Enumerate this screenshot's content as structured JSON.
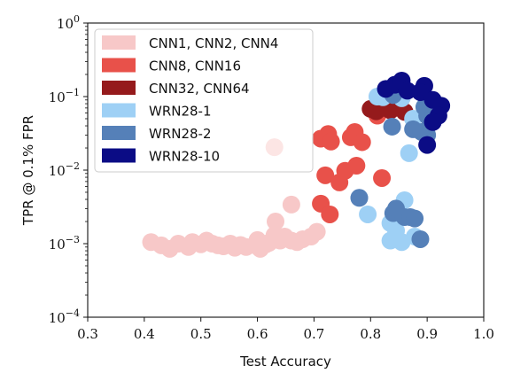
{
  "chart_data": {
    "type": "scatter",
    "title": "",
    "xlabel": "Test Accuracy",
    "ylabel": "TPR @ 0.1% FPR",
    "x_range": [
      0.3,
      1.0
    ],
    "y_range": [
      0.0001,
      1
    ],
    "y_scale": "log",
    "grid": false,
    "legend_position": "top-left",
    "x_ticks": [
      {
        "value": 0.3,
        "label": "0.3"
      },
      {
        "value": 0.4,
        "label": "0.4"
      },
      {
        "value": 0.5,
        "label": "0.5"
      },
      {
        "value": 0.6,
        "label": "0.6"
      },
      {
        "value": 0.7,
        "label": "0.7"
      },
      {
        "value": 0.8,
        "label": "0.8"
      },
      {
        "value": 0.9,
        "label": "0.9"
      },
      {
        "value": 1.0,
        "label": "1.0"
      }
    ],
    "y_ticks": [
      {
        "value": 0.0001,
        "base": "10",
        "exp": "−4"
      },
      {
        "value": 0.001,
        "base": "10",
        "exp": "−3"
      },
      {
        "value": 0.01,
        "base": "10",
        "exp": "−2"
      },
      {
        "value": 0.1,
        "base": "10",
        "exp": "−1"
      },
      {
        "value": 1,
        "base": "10",
        "exp": "0"
      }
    ],
    "series": [
      {
        "name": "CNN1, CNN2, CNN4",
        "color": "#f7c8c8",
        "points": [
          {
            "x": 0.412,
            "y": 0.00105
          },
          {
            "x": 0.43,
            "y": 0.00095
          },
          {
            "x": 0.445,
            "y": 0.00085
          },
          {
            "x": 0.46,
            "y": 0.001
          },
          {
            "x": 0.478,
            "y": 0.0009
          },
          {
            "x": 0.485,
            "y": 0.00105
          },
          {
            "x": 0.5,
            "y": 0.00098
          },
          {
            "x": 0.51,
            "y": 0.0011
          },
          {
            "x": 0.52,
            "y": 0.001
          },
          {
            "x": 0.53,
            "y": 0.00095
          },
          {
            "x": 0.54,
            "y": 0.00092
          },
          {
            "x": 0.552,
            "y": 0.001
          },
          {
            "x": 0.56,
            "y": 0.00088
          },
          {
            "x": 0.57,
            "y": 0.00096
          },
          {
            "x": 0.58,
            "y": 0.0009
          },
          {
            "x": 0.6,
            "y": 0.00112
          },
          {
            "x": 0.6,
            "y": 0.00092
          },
          {
            "x": 0.605,
            "y": 0.00085
          },
          {
            "x": 0.615,
            "y": 0.00098
          },
          {
            "x": 0.62,
            "y": 0.00102
          },
          {
            "x": 0.63,
            "y": 0.0013
          },
          {
            "x": 0.64,
            "y": 0.0011
          },
          {
            "x": 0.648,
            "y": 0.00125
          },
          {
            "x": 0.66,
            "y": 0.0011
          },
          {
            "x": 0.67,
            "y": 0.00105
          },
          {
            "x": 0.68,
            "y": 0.00115
          },
          {
            "x": 0.695,
            "y": 0.00125
          },
          {
            "x": 0.705,
            "y": 0.00145
          },
          {
            "x": 0.632,
            "y": 0.002
          },
          {
            "x": 0.66,
            "y": 0.0034
          }
        ]
      },
      {
        "name": "CNN8, CNN16",
        "color": "#e8514a",
        "points": [
          {
            "x": 0.63,
            "y": 0.0205
          },
          {
            "x": 0.712,
            "y": 0.0268
          },
          {
            "x": 0.725,
            "y": 0.031
          },
          {
            "x": 0.73,
            "y": 0.0245
          },
          {
            "x": 0.765,
            "y": 0.028
          },
          {
            "x": 0.772,
            "y": 0.033
          },
          {
            "x": 0.785,
            "y": 0.024
          },
          {
            "x": 0.72,
            "y": 0.0085
          },
          {
            "x": 0.745,
            "y": 0.0068
          },
          {
            "x": 0.755,
            "y": 0.0098
          },
          {
            "x": 0.775,
            "y": 0.0115
          },
          {
            "x": 0.82,
            "y": 0.0078
          },
          {
            "x": 0.712,
            "y": 0.0035
          },
          {
            "x": 0.728,
            "y": 0.0025
          },
          {
            "x": 0.812,
            "y": 0.055
          }
        ]
      },
      {
        "name": "CNN32, CNN64",
        "color": "#951a1c",
        "points": [
          {
            "x": 0.8,
            "y": 0.068
          },
          {
            "x": 0.81,
            "y": 0.063
          },
          {
            "x": 0.82,
            "y": 0.07
          },
          {
            "x": 0.835,
            "y": 0.065
          },
          {
            "x": 0.845,
            "y": 0.073
          },
          {
            "x": 0.86,
            "y": 0.062
          }
        ]
      },
      {
        "name": "WRN28-1",
        "color": "#9ed0f5",
        "points": [
          {
            "x": 0.812,
            "y": 0.1
          },
          {
            "x": 0.822,
            "y": 0.098
          },
          {
            "x": 0.855,
            "y": 0.095
          },
          {
            "x": 0.875,
            "y": 0.05
          },
          {
            "x": 0.868,
            "y": 0.017
          },
          {
            "x": 0.78,
            "y": 0.0042
          },
          {
            "x": 0.795,
            "y": 0.0025
          },
          {
            "x": 0.86,
            "y": 0.0039
          },
          {
            "x": 0.835,
            "y": 0.0019
          },
          {
            "x": 0.845,
            "y": 0.0015
          },
          {
            "x": 0.835,
            "y": 0.0011
          },
          {
            "x": 0.855,
            "y": 0.00105
          },
          {
            "x": 0.878,
            "y": 0.00125
          }
        ]
      },
      {
        "name": "WRN28-2",
        "color": "#5580b8",
        "points": [
          {
            "x": 0.84,
            "y": 0.105
          },
          {
            "x": 0.895,
            "y": 0.072
          },
          {
            "x": 0.9,
            "y": 0.055
          },
          {
            "x": 0.905,
            "y": 0.048
          },
          {
            "x": 0.875,
            "y": 0.036
          },
          {
            "x": 0.89,
            "y": 0.033
          },
          {
            "x": 0.9,
            "y": 0.03
          },
          {
            "x": 0.838,
            "y": 0.039
          },
          {
            "x": 0.78,
            "y": 0.0042
          },
          {
            "x": 0.84,
            "y": 0.0026
          },
          {
            "x": 0.845,
            "y": 0.003
          },
          {
            "x": 0.86,
            "y": 0.0023
          },
          {
            "x": 0.87,
            "y": 0.0023
          },
          {
            "x": 0.878,
            "y": 0.0022
          },
          {
            "x": 0.888,
            "y": 0.00115
          }
        ]
      },
      {
        "name": "WRN28-10",
        "color": "#0b0c85",
        "points": [
          {
            "x": 0.827,
            "y": 0.127
          },
          {
            "x": 0.843,
            "y": 0.145
          },
          {
            "x": 0.855,
            "y": 0.165
          },
          {
            "x": 0.865,
            "y": 0.12
          },
          {
            "x": 0.895,
            "y": 0.14
          },
          {
            "x": 0.888,
            "y": 0.115
          },
          {
            "x": 0.91,
            "y": 0.09
          },
          {
            "x": 0.925,
            "y": 0.075
          },
          {
            "x": 0.92,
            "y": 0.055
          },
          {
            "x": 0.91,
            "y": 0.045
          },
          {
            "x": 0.9,
            "y": 0.022
          }
        ]
      }
    ]
  }
}
